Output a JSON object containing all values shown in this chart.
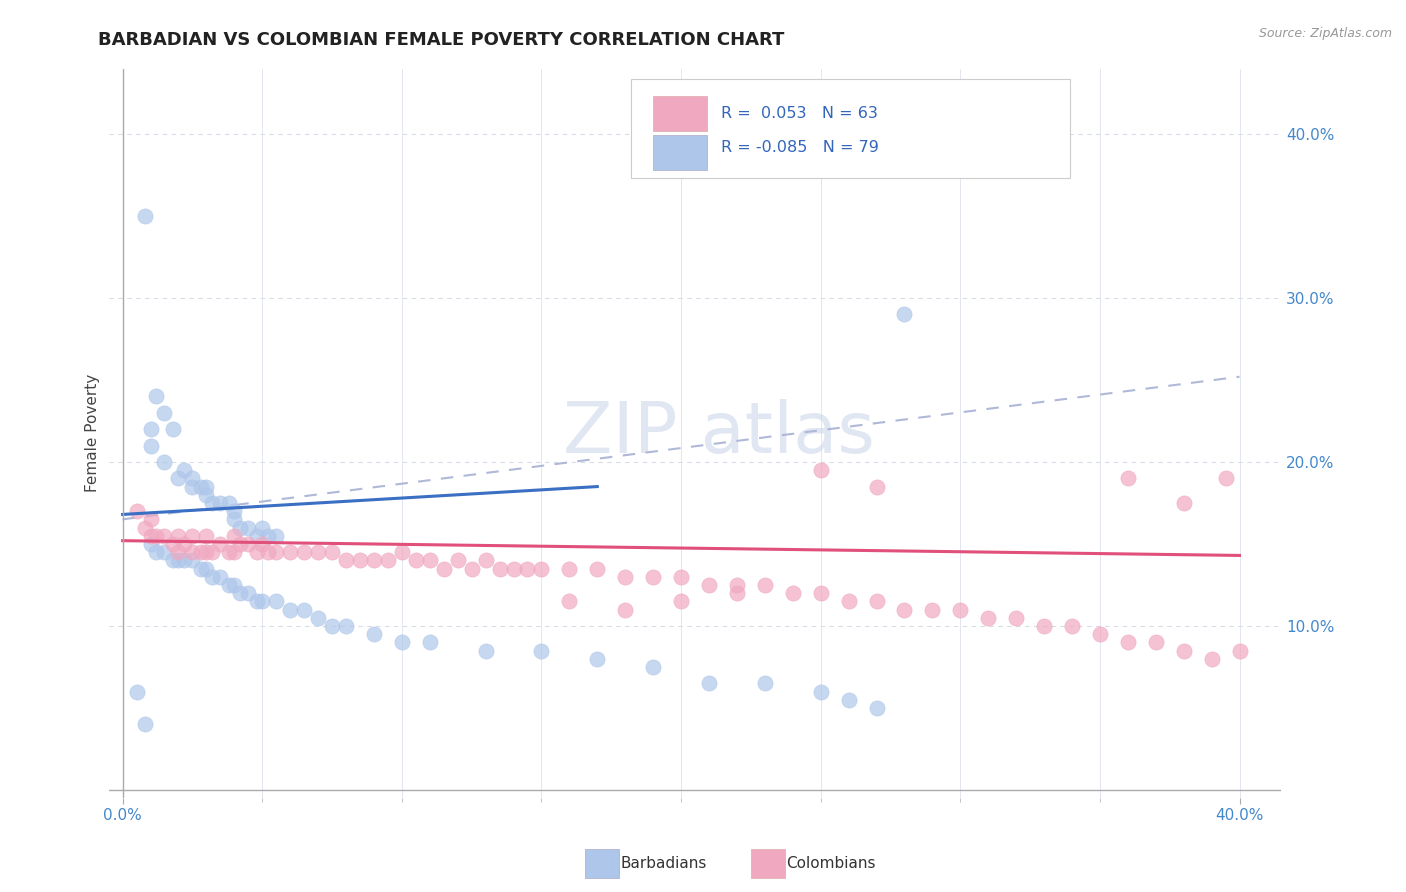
{
  "title": "BARBADIAN VS COLOMBIAN FEMALE POVERTY CORRELATION CHART",
  "source": "Source: ZipAtlas.com",
  "ylabel": "Female Poverty",
  "xlim": [
    -0.005,
    0.415
  ],
  "ylim": [
    -0.005,
    0.44
  ],
  "x_ticks": [
    0.0,
    0.4
  ],
  "x_tick_labels": [
    "0.0%",
    "40.0%"
  ],
  "y_ticks": [
    0.1,
    0.2,
    0.3,
    0.4
  ],
  "y_tick_labels": [
    "10.0%",
    "20.0%",
    "30.0%",
    "40.0%"
  ],
  "barbadian_color": "#aec6ea",
  "colombian_color": "#f0a8c0",
  "barbadian_line_color": "#3a6fc4",
  "colombian_line_color": "#e0507a",
  "dashed_line_color": "#b0b8d8",
  "barbadian_R": 0.053,
  "barbadian_N": 63,
  "colombian_R": -0.085,
  "colombian_N": 79,
  "watermark_text": "ZIP atlas",
  "background_color": "#ffffff",
  "grid_color": "#d8dce8",
  "legend_label_blue": "Barbadians",
  "legend_label_pink": "Colombians",
  "title_fontsize": 13,
  "tick_fontsize": 11,
  "ylabel_fontsize": 11,
  "source_fontsize": 9,
  "barbadian_x": [
    0.008,
    0.012,
    0.015,
    0.018,
    0.01,
    0.01,
    0.015,
    0.02,
    0.022,
    0.025,
    0.025,
    0.028,
    0.03,
    0.03,
    0.032,
    0.035,
    0.038,
    0.04,
    0.04,
    0.042,
    0.045,
    0.048,
    0.05,
    0.052,
    0.055,
    0.01,
    0.012,
    0.015,
    0.018,
    0.02,
    0.022,
    0.025,
    0.028,
    0.03,
    0.032,
    0.035,
    0.038,
    0.04,
    0.042,
    0.045,
    0.048,
    0.05,
    0.055,
    0.06,
    0.065,
    0.07,
    0.075,
    0.08,
    0.09,
    0.1,
    0.11,
    0.13,
    0.15,
    0.17,
    0.19,
    0.21,
    0.23,
    0.25,
    0.26,
    0.27,
    0.28,
    0.005,
    0.008
  ],
  "barbadian_y": [
    0.35,
    0.24,
    0.23,
    0.22,
    0.22,
    0.21,
    0.2,
    0.19,
    0.195,
    0.19,
    0.185,
    0.185,
    0.185,
    0.18,
    0.175,
    0.175,
    0.175,
    0.17,
    0.165,
    0.16,
    0.16,
    0.155,
    0.16,
    0.155,
    0.155,
    0.15,
    0.145,
    0.145,
    0.14,
    0.14,
    0.14,
    0.14,
    0.135,
    0.135,
    0.13,
    0.13,
    0.125,
    0.125,
    0.12,
    0.12,
    0.115,
    0.115,
    0.115,
    0.11,
    0.11,
    0.105,
    0.1,
    0.1,
    0.095,
    0.09,
    0.09,
    0.085,
    0.085,
    0.08,
    0.075,
    0.065,
    0.065,
    0.06,
    0.055,
    0.05,
    0.29,
    0.06,
    0.04
  ],
  "colombian_x": [
    0.005,
    0.008,
    0.01,
    0.01,
    0.012,
    0.015,
    0.018,
    0.02,
    0.02,
    0.022,
    0.025,
    0.025,
    0.028,
    0.03,
    0.03,
    0.032,
    0.035,
    0.038,
    0.04,
    0.04,
    0.042,
    0.045,
    0.048,
    0.05,
    0.052,
    0.055,
    0.06,
    0.065,
    0.07,
    0.075,
    0.08,
    0.085,
    0.09,
    0.095,
    0.1,
    0.105,
    0.11,
    0.115,
    0.12,
    0.125,
    0.13,
    0.135,
    0.14,
    0.145,
    0.15,
    0.16,
    0.17,
    0.18,
    0.19,
    0.2,
    0.21,
    0.22,
    0.23,
    0.24,
    0.25,
    0.26,
    0.27,
    0.28,
    0.29,
    0.3,
    0.31,
    0.32,
    0.33,
    0.34,
    0.35,
    0.36,
    0.37,
    0.38,
    0.39,
    0.4,
    0.25,
    0.27,
    0.36,
    0.38,
    0.2,
    0.22,
    0.16,
    0.18,
    0.395
  ],
  "colombian_y": [
    0.17,
    0.16,
    0.165,
    0.155,
    0.155,
    0.155,
    0.15,
    0.155,
    0.145,
    0.15,
    0.155,
    0.145,
    0.145,
    0.155,
    0.145,
    0.145,
    0.15,
    0.145,
    0.155,
    0.145,
    0.15,
    0.15,
    0.145,
    0.15,
    0.145,
    0.145,
    0.145,
    0.145,
    0.145,
    0.145,
    0.14,
    0.14,
    0.14,
    0.14,
    0.145,
    0.14,
    0.14,
    0.135,
    0.14,
    0.135,
    0.14,
    0.135,
    0.135,
    0.135,
    0.135,
    0.135,
    0.135,
    0.13,
    0.13,
    0.13,
    0.125,
    0.125,
    0.125,
    0.12,
    0.12,
    0.115,
    0.115,
    0.11,
    0.11,
    0.11,
    0.105,
    0.105,
    0.1,
    0.1,
    0.095,
    0.09,
    0.09,
    0.085,
    0.08,
    0.085,
    0.195,
    0.185,
    0.19,
    0.175,
    0.115,
    0.12,
    0.115,
    0.11,
    0.19
  ],
  "dashed_line_x": [
    0.0,
    0.4
  ],
  "dashed_line_y": [
    0.165,
    0.252
  ],
  "blue_line_x": [
    0.0,
    0.17
  ],
  "blue_line_y": [
    0.168,
    0.185
  ],
  "pink_line_x": [
    0.0,
    0.4
  ],
  "pink_line_y": [
    0.152,
    0.143
  ]
}
